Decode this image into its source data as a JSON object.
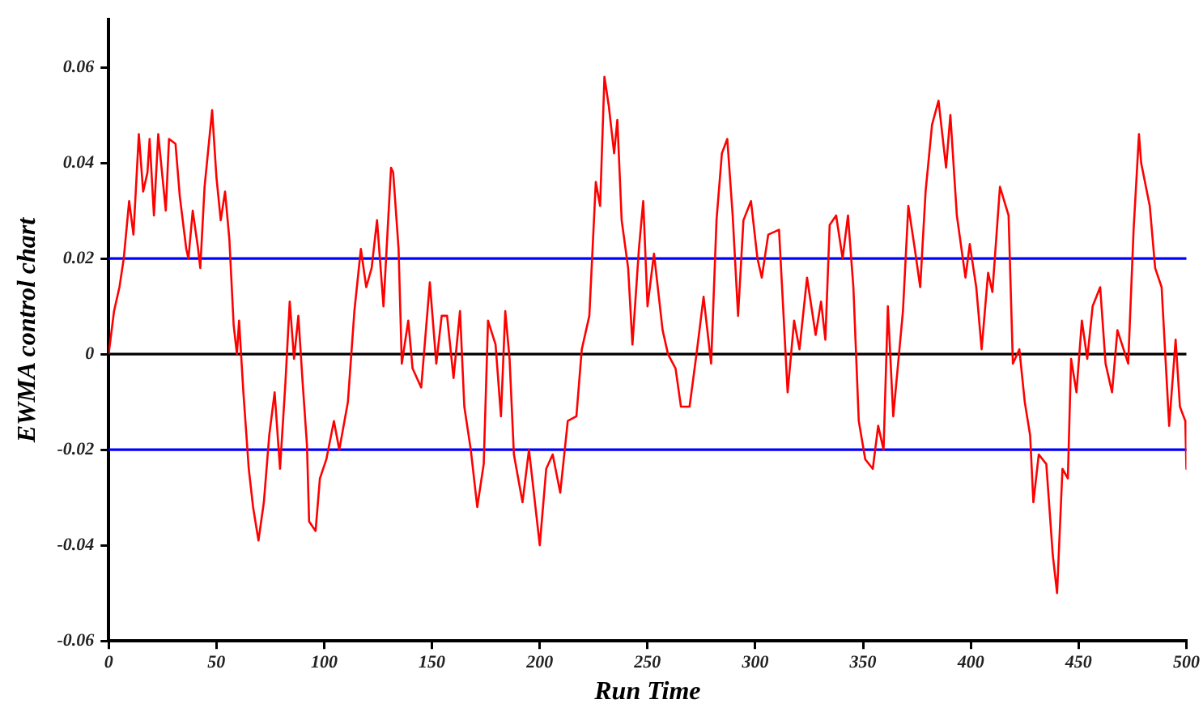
{
  "chart_data": {
    "type": "line",
    "xlabel": "Run Time",
    "ylabel": "EWMA control chart",
    "xlim": [
      0,
      500
    ],
    "xticks": [
      0,
      50,
      100,
      150,
      200,
      250,
      300,
      350,
      400,
      450,
      500
    ],
    "ylim": [
      -0.06,
      0.07
    ],
    "yticks": [
      -0.06,
      -0.04,
      -0.02,
      0,
      0.02,
      0.04,
      0.06
    ],
    "grid": false,
    "legend": false,
    "marker": "none",
    "line_style": "solid",
    "ref_lines": [
      {
        "axis": "y",
        "value": 0.02,
        "color": "#0000ff"
      },
      {
        "axis": "y",
        "value": -0.02,
        "color": "#0000ff"
      },
      {
        "axis": "y",
        "value": 0,
        "color": "#000000"
      }
    ],
    "series": [
      {
        "color": "#ff0000",
        "x": [
          0,
          2.5,
          5,
          7,
          9.5,
          11.5,
          14,
          16,
          18,
          19,
          21,
          23,
          26.5,
          28,
          31,
          33,
          36,
          37,
          39,
          41.5,
          42.5,
          44.5,
          48,
          50,
          52,
          54,
          56,
          58,
          59.5,
          60.5,
          62.5,
          65,
          67,
          69.5,
          72,
          74.5,
          77,
          79.5,
          82,
          84,
          86,
          88,
          90,
          92,
          93,
          96,
          98,
          101,
          104.5,
          107,
          111,
          114,
          117,
          119.5,
          122,
          124.5,
          127.5,
          131,
          132,
          134.5,
          136,
          139,
          141,
          145,
          149,
          152,
          154.5,
          157,
          160,
          163,
          165,
          168,
          171,
          174,
          176,
          179.5,
          182,
          184,
          186,
          188,
          192,
          195,
          198,
          200,
          203,
          206,
          209.5,
          213,
          217,
          219.5,
          223,
          226,
          228,
          230,
          232,
          234.5,
          236,
          238,
          241,
          243,
          246,
          248,
          250,
          253,
          257,
          259.5,
          263,
          265.5,
          269.5,
          273,
          276,
          279.5,
          282,
          284.5,
          287,
          289.5,
          292,
          294.5,
          298,
          301,
          303,
          306,
          311,
          315,
          318,
          320.5,
          324,
          328,
          330.5,
          332.5,
          334.5,
          337.5,
          340.5,
          343,
          345.5,
          348,
          351,
          354.5,
          357,
          359.5,
          361.5,
          364,
          368.5,
          371,
          374,
          376.5,
          379,
          382,
          385,
          388.5,
          390.5,
          393.5,
          397.5,
          399.5,
          402.5,
          405,
          408,
          410,
          413.5,
          417.5,
          419.5,
          422.5,
          425,
          427.5,
          429,
          431.5,
          435,
          438,
          440,
          442.5,
          445,
          446.5,
          449,
          451.5,
          454,
          456.5,
          460,
          462.5,
          465.5,
          468,
          473,
          475.5,
          478,
          479,
          483,
          485.5,
          488.5,
          492,
          495,
          497,
          499.5,
          500
        ],
        "values": [
          0,
          0.009,
          0.014,
          0.02,
          0.032,
          0.025,
          0.046,
          0.034,
          0.038,
          0.045,
          0.029,
          0.046,
          0.03,
          0.045,
          0.044,
          0.033,
          0.022,
          0.02,
          0.03,
          0.022,
          0.018,
          0.035,
          0.051,
          0.037,
          0.028,
          0.034,
          0.024,
          0.006,
          0,
          0.007,
          -0.008,
          -0.024,
          -0.032,
          -0.039,
          -0.031,
          -0.017,
          -0.008,
          -0.024,
          -0.006,
          0.011,
          -0.001,
          0.008,
          -0.006,
          -0.019,
          -0.035,
          -0.037,
          -0.026,
          -0.022,
          -0.014,
          -0.02,
          -0.01,
          0.009,
          0.022,
          0.014,
          0.018,
          0.028,
          0.01,
          0.039,
          0.038,
          0.022,
          -0.002,
          0.007,
          -0.003,
          -0.007,
          0.015,
          -0.002,
          0.008,
          0.008,
          -0.005,
          0.009,
          -0.011,
          -0.02,
          -0.032,
          -0.023,
          0.007,
          0.002,
          -0.013,
          0.009,
          -0.001,
          -0.021,
          -0.031,
          -0.02,
          -0.032,
          -0.04,
          -0.024,
          -0.021,
          -0.029,
          -0.014,
          -0.013,
          0.001,
          0.008,
          0.036,
          0.031,
          0.058,
          0.052,
          0.042,
          0.049,
          0.028,
          0.018,
          0.002,
          0.022,
          0.032,
          0.01,
          0.021,
          0.005,
          0,
          -0.003,
          -0.011,
          -0.011,
          0.001,
          0.012,
          -0.002,
          0.028,
          0.042,
          0.045,
          0.029,
          0.008,
          0.028,
          0.032,
          0.02,
          0.016,
          0.025,
          0.026,
          -0.008,
          0.007,
          0.001,
          0.016,
          0.004,
          0.011,
          0.003,
          0.027,
          0.029,
          0.02,
          0.029,
          0.014,
          -0.014,
          -0.022,
          -0.024,
          -0.015,
          -0.02,
          0.01,
          -0.013,
          0.009,
          0.031,
          0.022,
          0.014,
          0.034,
          0.048,
          0.053,
          0.039,
          0.05,
          0.029,
          0.016,
          0.023,
          0.014,
          0.001,
          0.017,
          0.013,
          0.035,
          0.029,
          -0.002,
          0.001,
          -0.01,
          -0.017,
          -0.031,
          -0.021,
          -0.023,
          -0.042,
          -0.05,
          -0.024,
          -0.026,
          -0.001,
          -0.008,
          0.007,
          -0.001,
          0.01,
          0.014,
          -0.002,
          -0.008,
          0.005,
          -0.002,
          0.026,
          0.046,
          0.04,
          0.031,
          0.018,
          0.014,
          -0.015,
          0.003,
          -0.011,
          -0.014,
          -0.024
        ]
      }
    ]
  }
}
